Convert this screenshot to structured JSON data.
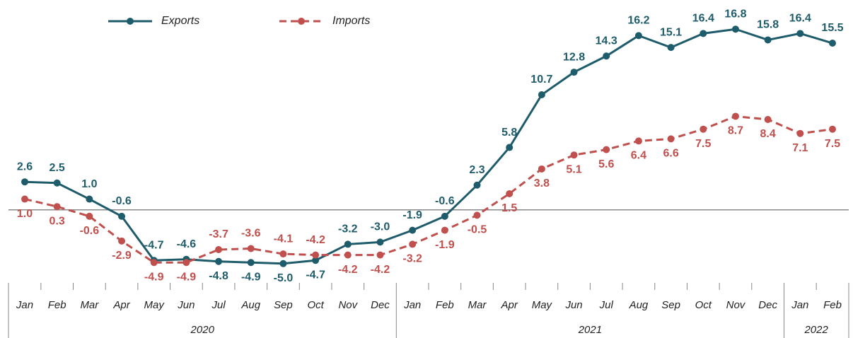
{
  "chart_data": {
    "type": "line",
    "categories": [
      "Jan",
      "Feb",
      "Mar",
      "Apr",
      "May",
      "Jun",
      "Jul",
      "Aug",
      "Sep",
      "Oct",
      "Nov",
      "Dec",
      "Jan",
      "Feb",
      "Mar",
      "Apr",
      "May",
      "Jun",
      "Jul",
      "Aug",
      "Sep",
      "Oct",
      "Nov",
      "Dec",
      "Jan",
      "Feb"
    ],
    "groups": [
      "2020",
      "2021",
      "2022"
    ],
    "series": [
      {
        "name": "Exports",
        "color": "#1f5c6b",
        "dash": false,
        "values": [
          2.6,
          2.5,
          1.0,
          -0.6,
          -4.7,
          -4.6,
          -4.8,
          -4.9,
          -5.0,
          -4.7,
          -3.2,
          -3.0,
          -1.9,
          -0.6,
          2.3,
          5.8,
          10.7,
          12.8,
          14.3,
          16.2,
          15.1,
          16.4,
          16.8,
          15.8,
          16.4,
          15.5
        ],
        "value_labels": [
          "2.6",
          "2.5",
          "1.0",
          "-0.6",
          "-4.7",
          "-4.6",
          "-4.8",
          "-4.9",
          "-5.0",
          "-4.7",
          "-3.2",
          "-3.0",
          "-1.9",
          "-0.6",
          "2.3",
          "5.8",
          "10.7",
          "12.8",
          "14.3",
          "16.2",
          "15.1",
          "16.4",
          "16.8",
          "15.8",
          "16.4",
          "15.5"
        ]
      },
      {
        "name": "Imports",
        "color": "#c0504d",
        "dash": true,
        "values": [
          1.0,
          0.3,
          -0.6,
          -2.9,
          -4.9,
          -4.9,
          -3.7,
          -3.6,
          -4.1,
          -4.2,
          -4.2,
          -4.2,
          -3.2,
          -1.9,
          -0.5,
          1.5,
          3.8,
          5.1,
          5.6,
          6.4,
          6.6,
          7.5,
          8.7,
          8.4,
          7.1,
          7.5
        ],
        "value_labels": [
          "1.0",
          "0.3",
          "-0.6",
          "-2.9",
          "-4.9",
          "-4.9",
          "-3.7",
          "-3.6",
          "-4.1",
          "-4.2",
          "-4.2",
          "-4.2",
          "-3.2",
          "-1.9",
          "-0.5",
          "1.5",
          "3.8",
          "5.1",
          "5.6",
          "6.4",
          "6.6",
          "7.5",
          "8.7",
          "8.4",
          "7.1",
          "7.5"
        ]
      }
    ],
    "ylim": [
      -6,
      18
    ]
  }
}
